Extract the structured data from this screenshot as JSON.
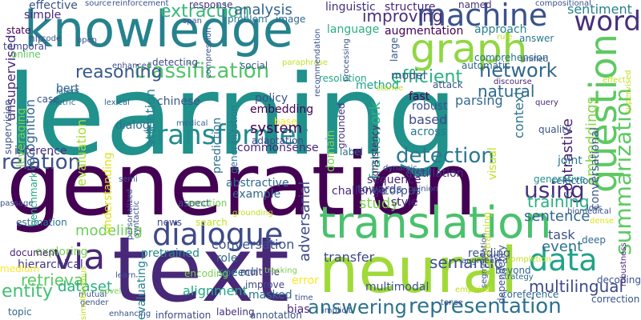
{
  "palette": {
    "deep_purple": "#440154",
    "indigo": "#3b528b",
    "teal": "#21918c",
    "sea_green": "#2a9d8f",
    "green": "#5ec962",
    "lime": "#9fda3a",
    "yellow": "#fde725"
  },
  "words": [
    {
      "text": "learning",
      "color": "#21918c"
    },
    {
      "text": "generation",
      "color": "#440154"
    },
    {
      "text": "text",
      "color": "#482878"
    },
    {
      "text": "knowledge",
      "color": "#26828e"
    },
    {
      "text": "neural",
      "color": "#a0da39"
    },
    {
      "text": "translation",
      "color": "#4ac16d"
    },
    {
      "text": "question",
      "color": "#5ec962"
    },
    {
      "text": "graph",
      "color": "#90d743"
    },
    {
      "text": "machine",
      "color": "#3b528b"
    },
    {
      "text": "transformer",
      "color": "#238a8d"
    },
    {
      "text": "dialogue",
      "color": "#3e4a89"
    },
    {
      "text": "via",
      "color": "#482878"
    },
    {
      "text": "data",
      "color": "#20a386"
    },
    {
      "text": "word",
      "color": "#472f7d"
    },
    {
      "text": "summarization",
      "color": "#5ec962"
    },
    {
      "text": "representation",
      "color": "#2c728e"
    },
    {
      "text": "classification",
      "color": "#52c569"
    },
    {
      "text": "extraction",
      "color": "#35b779"
    },
    {
      "text": "answering",
      "color": "#2c728e"
    },
    {
      "text": "detection",
      "color": "#2a788e"
    },
    {
      "text": "network",
      "color": "#31688e"
    },
    {
      "text": "entity",
      "color": "#43bf71"
    },
    {
      "text": "relation",
      "color": "#3b528b"
    },
    {
      "text": "using",
      "color": "#46327e"
    },
    {
      "text": "multilingual",
      "color": "#3e4989"
    },
    {
      "text": "reasoning",
      "color": "#38598c"
    },
    {
      "text": "efficient",
      "color": "#2ab07f"
    },
    {
      "text": "natural",
      "color": "#30698e"
    },
    {
      "text": "improving",
      "color": "#472d7b"
    },
    {
      "text": "sentiment",
      "color": "#26828e"
    },
    {
      "text": "analysis",
      "color": "#33638d"
    },
    {
      "text": "semantic",
      "color": "#3b528b"
    },
    {
      "text": "training",
      "color": "#2ab07f"
    },
    {
      "text": "retrieval",
      "color": "#5ec962"
    },
    {
      "text": "modeling",
      "color": "#6ccd5a"
    },
    {
      "text": "sentence",
      "color": "#31688e"
    },
    {
      "text": "study",
      "color": "#7ad151"
    },
    {
      "text": "contrastive",
      "color": "#482475"
    },
    {
      "text": "system",
      "color": "#440154"
    },
    {
      "text": "embeddings",
      "color": "#85d54a"
    },
    {
      "text": "framework",
      "color": "#2ab07f"
    },
    {
      "text": "event",
      "color": "#2c728e"
    },
    {
      "text": "task",
      "color": "#3b528b"
    },
    {
      "text": "unsupervised",
      "color": "#472a7a"
    },
    {
      "text": "dataset",
      "color": "#2ab07f"
    },
    {
      "text": "adversarial",
      "color": "#3e4989"
    },
    {
      "text": "alignment",
      "color": "#22a785"
    },
    {
      "text": "attention",
      "color": "#277f8e"
    },
    {
      "text": "evaluation",
      "color": "#a8db34"
    },
    {
      "text": "conversation",
      "color": "#3b528b"
    },
    {
      "text": "context",
      "color": "#2c728e"
    },
    {
      "text": "parsing",
      "color": "#31688e"
    },
    {
      "text": "recognition",
      "color": "#33638d"
    },
    {
      "text": "embedding",
      "color": "#440154"
    },
    {
      "text": "based",
      "color": "#3e4989"
    },
    {
      "text": "method",
      "color": "#20a386"
    },
    {
      "text": "pretrained",
      "color": "#238a8d"
    },
    {
      "text": "transfer",
      "color": "#3e4989"
    },
    {
      "text": "exploring",
      "color": "#7ad151"
    },
    {
      "text": "approach",
      "color": "#26828e"
    },
    {
      "text": "augmentation",
      "color": "#440154"
    },
    {
      "text": "conversational",
      "color": "#38598c"
    },
    {
      "text": "inference",
      "color": "#46327e"
    },
    {
      "text": "dialog",
      "color": "#2d708e"
    },
    {
      "text": "towards",
      "color": "#3e4989"
    },
    {
      "text": "hierarchical",
      "color": "#443a83"
    },
    {
      "text": "robust",
      "color": "#3b528b"
    },
    {
      "text": "across",
      "color": "#2a788e"
    },
    {
      "text": "commonsense",
      "color": "#482878"
    },
    {
      "text": "visual",
      "color": "#c2df23"
    },
    {
      "text": "reading",
      "color": "#3b528b"
    },
    {
      "text": "chinese",
      "color": "#38598c"
    },
    {
      "text": "language",
      "color": "#2ab07f"
    },
    {
      "text": "linguistic",
      "color": "#46327e"
    },
    {
      "text": "structure",
      "color": "#482878"
    },
    {
      "text": "bert",
      "color": "#31688e"
    },
    {
      "text": "simple",
      "color": "#482878"
    },
    {
      "text": "effective",
      "color": "#3b528b"
    },
    {
      "text": "fast",
      "color": "#440154"
    },
    {
      "text": "policy",
      "color": "#3b528b"
    },
    {
      "text": "prediction",
      "color": "#2c728e"
    },
    {
      "text": "generalization",
      "color": "#2a788e"
    },
    {
      "text": "adaptation",
      "color": "#3e4989"
    },
    {
      "text": "domain",
      "color": "#7ad151"
    },
    {
      "text": "problem",
      "color": "#2c728e"
    },
    {
      "text": "speech",
      "color": "#2c728e"
    },
    {
      "text": "role",
      "color": "#31688e"
    },
    {
      "text": "corpus",
      "color": "#3b528b"
    },
    {
      "text": "distillation",
      "color": "#46327e"
    },
    {
      "text": "sequence",
      "color": "#482878"
    },
    {
      "text": "challenge",
      "color": "#472a7a"
    },
    {
      "text": "style",
      "color": "#482878"
    },
    {
      "text": "abstractive",
      "color": "#31688e"
    },
    {
      "text": "example",
      "color": "#31688e"
    },
    {
      "text": "multimodal",
      "color": "#3b528b"
    },
    {
      "text": "multiple",
      "color": "#46327e"
    },
    {
      "text": "improve",
      "color": "#3e4989"
    },
    {
      "text": "masked",
      "color": "#2c728e"
    },
    {
      "text": "error",
      "color": "#fde725"
    },
    {
      "text": "bias",
      "color": "#482878"
    },
    {
      "text": "information",
      "color": "#3e4989"
    },
    {
      "text": "labeling",
      "color": "#46327e"
    },
    {
      "text": "annotation",
      "color": "#3b528b"
    },
    {
      "text": "topic",
      "color": "#31688e"
    },
    {
      "text": "evaluating",
      "color": "#26828e"
    },
    {
      "text": "understanding",
      "color": "#dde318"
    },
    {
      "text": "estimation",
      "color": "#2c728e"
    },
    {
      "text": "document",
      "color": "#482878"
    },
    {
      "text": "benchmark",
      "color": "#22a785"
    },
    {
      "text": "medium",
      "color": "#fde725"
    },
    {
      "text": "supervision",
      "color": "#3b528b"
    },
    {
      "text": "leveraging",
      "color": "#7ad151"
    },
    {
      "text": "base",
      "color": "#fde725"
    },
    {
      "text": "quality",
      "color": "#3b528b"
    },
    {
      "text": "joint",
      "color": "#2a788e"
    },
    {
      "text": "label",
      "color": "#2c728e"
    },
    {
      "text": "grounded",
      "color": "#46327e"
    },
    {
      "text": "consistency",
      "color": "#482878"
    },
    {
      "text": "selection",
      "color": "#31688e"
    },
    {
      "text": "generative",
      "color": "#21918c"
    },
    {
      "text": "detecting",
      "color": "#3e4989"
    },
    {
      "text": "social",
      "color": "#38598c"
    },
    {
      "text": "image",
      "color": "#31688e"
    },
    {
      "text": "resolution",
      "color": "#22a785"
    },
    {
      "text": "attack",
      "color": "#3b528b"
    },
    {
      "text": "comprehension",
      "color": "#2c728e"
    },
    {
      "text": "automatic",
      "color": "#31688e"
    },
    {
      "text": "answer",
      "color": "#2a788e"
    },
    {
      "text": "large",
      "color": "#38598c"
    },
    {
      "text": "model",
      "color": "#3b528b"
    },
    {
      "text": "response",
      "color": "#46327e"
    },
    {
      "text": "named",
      "color": "#46327e"
    },
    {
      "text": "temporal",
      "color": "#3e4989"
    },
    {
      "text": "state",
      "color": "#440154"
    },
    {
      "text": "nlp",
      "color": "#3b528b"
    },
    {
      "text": "case",
      "color": "#3b528b"
    },
    {
      "text": "online",
      "color": "#5ec962"
    },
    {
      "text": "latent",
      "color": "#31688e"
    },
    {
      "text": "metric",
      "color": "#31688e"
    },
    {
      "text": "lexical",
      "color": "#31688e"
    },
    {
      "text": "medical",
      "color": "#31688e"
    },
    {
      "text": "emotion",
      "color": "#7ad151"
    },
    {
      "text": "aspect",
      "color": "#3b528b"
    },
    {
      "text": "news",
      "color": "#3e4989"
    },
    {
      "text": "search",
      "color": "#c2df23"
    },
    {
      "text": "encoding",
      "color": "#7ad151"
    },
    {
      "text": "tracking",
      "color": "#7ad151"
    },
    {
      "text": "time",
      "color": "#3b528b"
    },
    {
      "text": "novel",
      "color": "#7ad151"
    },
    {
      "text": "learn",
      "color": "#3b528b"
    },
    {
      "text": "mutual",
      "color": "#3b528b"
    },
    {
      "text": "gender",
      "color": "#3b528b"
    },
    {
      "text": "enhancing",
      "color": "#3b528b"
    },
    {
      "text": "grounding",
      "color": "#c2df23"
    },
    {
      "text": "beyond",
      "color": "#31688e"
    },
    {
      "text": "strategy",
      "color": "#31688e"
    },
    {
      "text": "completion",
      "color": "#c2df23"
    },
    {
      "text": "coreference",
      "color": "#31688e"
    },
    {
      "text": "correction",
      "color": "#3b528b"
    },
    {
      "text": "decoding",
      "color": "#3b528b"
    },
    {
      "text": "deep",
      "color": "#31688e"
    },
    {
      "text": "loss",
      "color": "#3b528b"
    },
    {
      "text": "biomedical",
      "color": "#3b528b"
    },
    {
      "text": "dense",
      "color": "#dde318"
    },
    {
      "text": "robustness",
      "color": "#482878"
    },
    {
      "text": "supervised",
      "color": "#c2df23"
    },
    {
      "text": "query",
      "color": "#482878"
    },
    {
      "text": "effect",
      "color": "#c2df23"
    },
    {
      "text": "unified",
      "color": "#3b528b"
    },
    {
      "text": "discourse",
      "color": "#482878"
    },
    {
      "text": "stance",
      "color": "#c2df23"
    },
    {
      "text": "paraphrase",
      "color": "#c2df23"
    },
    {
      "text": "enhanced",
      "color": "#3b528b"
    },
    {
      "text": "source",
      "color": "#3b528b"
    },
    {
      "text": "reinforcement",
      "color": "#3b528b"
    },
    {
      "text": "compositional",
      "color": "#3b528b"
    },
    {
      "text": "span",
      "color": "#3b528b"
    },
    {
      "text": "compression",
      "color": "#3b528b"
    },
    {
      "text": "processing",
      "color": "#3b528b"
    },
    {
      "text": "recommendation",
      "color": "#3b528b"
    },
    {
      "text": "rule",
      "color": "#c2df23"
    },
    {
      "text": "open",
      "color": "#3b528b"
    },
    {
      "text": "code",
      "color": "#3b528b"
    },
    {
      "text": "implicit",
      "color": "#3b528b"
    },
    {
      "text": "empirical",
      "color": "#c2df23"
    },
    {
      "text": "segmentation",
      "color": "#3b528b"
    },
    {
      "text": "passage",
      "color": "#3b528b"
    },
    {
      "text": "simultaneous",
      "color": "#c2df23"
    },
    {
      "text": "better",
      "color": "#3b528b"
    },
    {
      "text": "user",
      "color": "#3b528b"
    },
    {
      "text": "dynamic",
      "color": "#3b528b"
    },
    {
      "text": "opinion",
      "color": "#3b528b"
    },
    {
      "text": "semi",
      "color": "#3b528b"
    },
    {
      "text": "personalized",
      "color": "#3b528b"
    },
    {
      "text": "syntactic",
      "color": "#3b528b"
    },
    {
      "text": "pretraining",
      "color": "#c2df23"
    },
    {
      "text": "dependency",
      "color": "#3b528b"
    },
    {
      "text": "augmented",
      "color": "#3b528b"
    },
    {
      "text": "tense",
      "color": "#3b528b"
    }
  ]
}
